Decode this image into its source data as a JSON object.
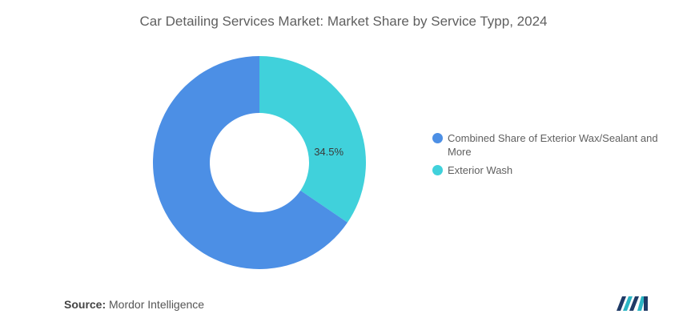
{
  "chart_data": {
    "type": "pie",
    "title": "Car Detailing Services Market: Market Share by Service Typp, 2024",
    "donut": true,
    "categories": [
      "Exterior Wash",
      "Combined Share of Exterior Wax/Sealant and More"
    ],
    "values": [
      34.5,
      65.5
    ],
    "data_labels": [
      "34.5%",
      ""
    ],
    "colors": [
      "#40D1DB",
      "#4C8FE5"
    ],
    "legend": [
      {
        "label": "Combined Share of Exterior Wax/Sealant and More",
        "color": "#4C8FE5"
      },
      {
        "label": "Exterior Wash",
        "color": "#40D1DB"
      }
    ],
    "legend_position": "right"
  },
  "source": {
    "key": "Source:",
    "value": "Mordor Intelligence"
  },
  "logo": {
    "icon": "mordor-intelligence-logo-icon"
  }
}
